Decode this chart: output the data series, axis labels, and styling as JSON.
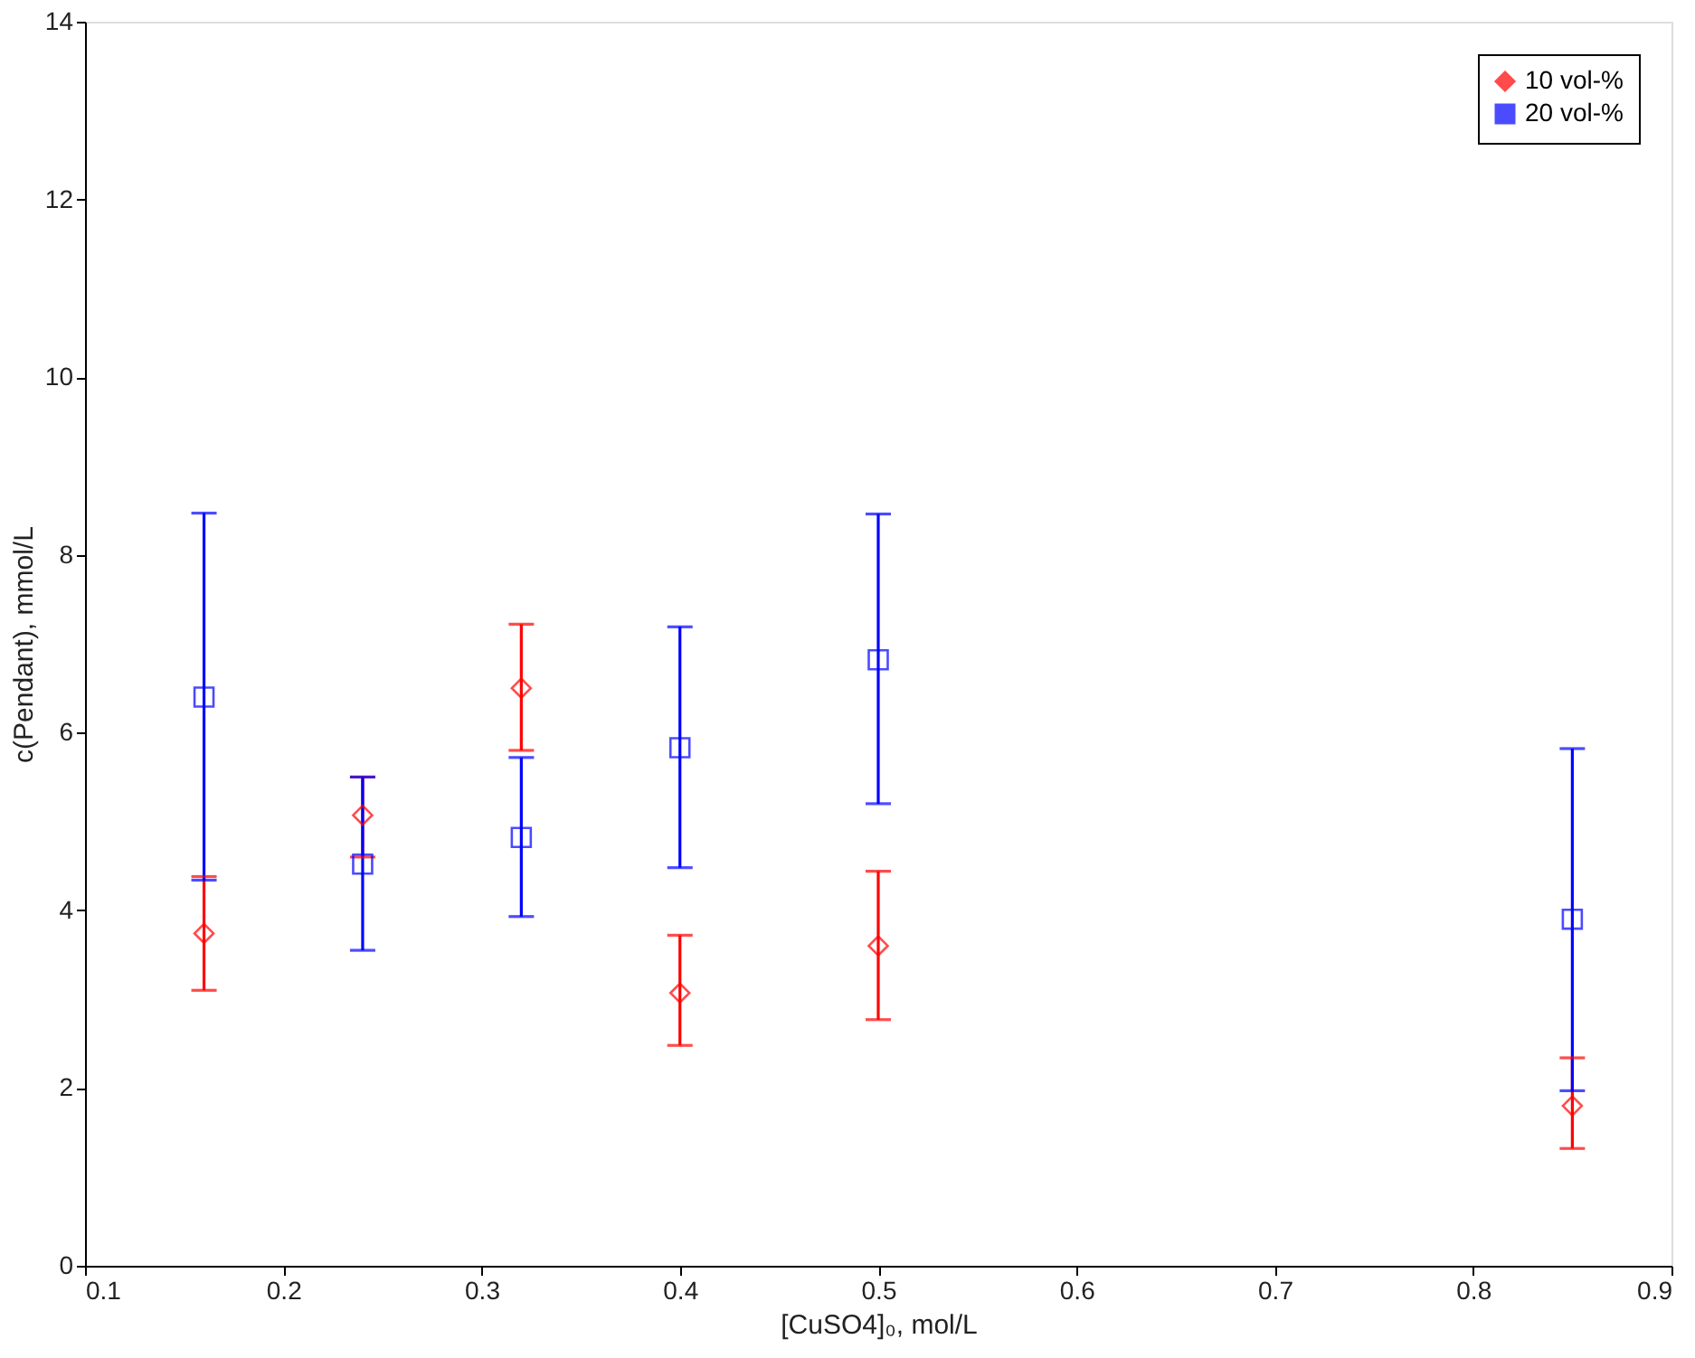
{
  "chart_data": {
    "type": "scatter",
    "xlabel": "[CuSO4]₀, mol/L",
    "ylabel": "c(Pendant), mmol/L",
    "x": [
      0.16,
      0.24,
      0.32,
      0.4,
      0.5,
      0.85
    ],
    "series": [
      {
        "name": "10 vol-%",
        "color": "#ff0000",
        "marker": "diamond",
        "values": [
          3.74,
          5.07,
          6.5,
          3.07,
          3.6,
          1.8
        ],
        "errors": [
          [
            3.1,
            4.38
          ],
          [
            4.6,
            5.5
          ],
          [
            5.8,
            7.22
          ],
          [
            2.48,
            3.72
          ],
          [
            2.77,
            4.44
          ],
          [
            1.32,
            2.34
          ]
        ]
      },
      {
        "name": "20 vol-%",
        "color": "#0000ff",
        "marker": "square",
        "values": [
          6.4,
          4.52,
          4.82,
          5.83,
          6.82,
          3.9
        ],
        "errors": [
          [
            4.34,
            8.47
          ],
          [
            3.55,
            5.5
          ],
          [
            3.93,
            5.72
          ],
          [
            4.48,
            7.19
          ],
          [
            5.2,
            8.46
          ],
          [
            1.97,
            5.82
          ]
        ]
      }
    ],
    "xlim": [
      0.1,
      0.9
    ],
    "xticks": [
      0.1,
      0.2,
      0.3,
      0.4,
      0.5,
      0.6,
      0.7,
      0.8,
      0.9
    ],
    "ylim": [
      0,
      14
    ],
    "yticks": [
      0,
      2,
      4,
      6,
      8,
      10,
      12,
      14
    ],
    "grid": false,
    "legend": "top right"
  }
}
